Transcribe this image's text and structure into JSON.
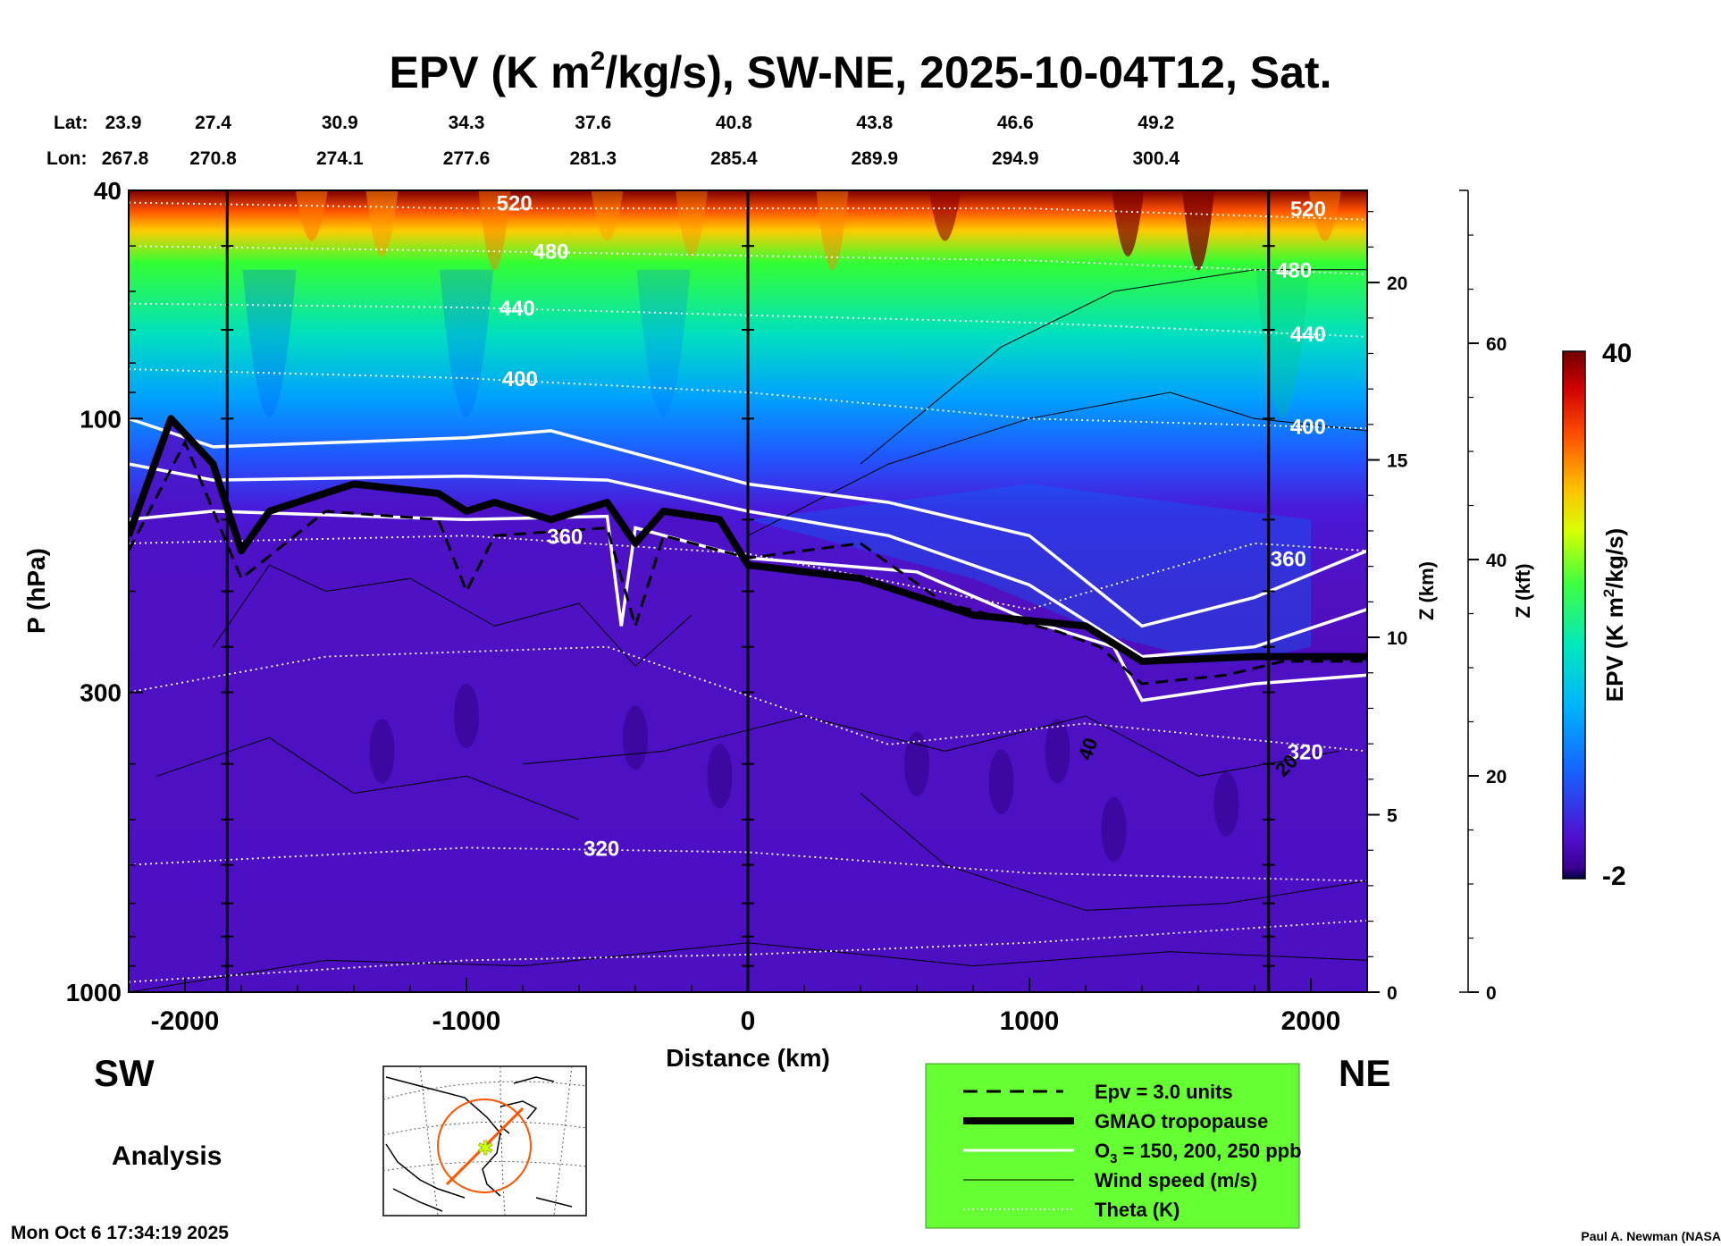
{
  "chart_data": {
    "type": "heatmap",
    "title": "EPV (K m²/kg/s), SW-NE, 2025-10-04T12, Sat.",
    "title_main": "EPV (K m",
    "title_sup": "2",
    "title_rest": "/kg/s), SW-NE, 2025-10-04T12, Sat.",
    "top_axis": {
      "lat_label": "Lat:",
      "lon_label": "Lon:",
      "lat": [
        "23.9",
        "27.4",
        "30.9",
        "34.3",
        "37.6",
        "40.8",
        "43.8",
        "46.6",
        "49.2"
      ],
      "lon": [
        "267.8",
        "270.8",
        "274.1",
        "277.6",
        "281.3",
        "285.4",
        "289.9",
        "294.9",
        "300.4"
      ],
      "distance_at": [
        -2200,
        -1900,
        -1450,
        -1000,
        -550,
        -50,
        450,
        950,
        1450
      ]
    },
    "xlabel": "Distance (km)",
    "xlim": [
      -2200,
      2200
    ],
    "xticks": [
      -2000,
      -1000,
      0,
      1000,
      2000
    ],
    "xtick_labels": [
      "-2000",
      "-1000",
      "0",
      "1000",
      "2000"
    ],
    "ylabel": "P (hPa)",
    "yscale": "log",
    "ylim": [
      1000,
      40
    ],
    "yticks": [
      40,
      100,
      300,
      1000
    ],
    "ytick_labels": [
      "40",
      "100",
      "300",
      "1000"
    ],
    "z_km_label": "Z (km)",
    "z_km_ticks": [
      0,
      5,
      10,
      15,
      20
    ],
    "z_km_tick_labels": [
      "0",
      "5",
      "10",
      "15",
      "20"
    ],
    "z_kft_label": "Z (kft)",
    "z_kft_ticks": [
      0,
      20,
      40,
      60
    ],
    "z_kft_tick_labels": [
      "0",
      "20",
      "40",
      "60"
    ],
    "vertical_lines_km": [
      -1850,
      0,
      1850
    ],
    "left_label": "SW",
    "right_label": "NE",
    "analysis_label": "Analysis",
    "colorbar": {
      "label": "EPV (K m²/kg/s)",
      "label_main": "EPV (K m",
      "label_sup": "2",
      "label_rest": "/kg/s)",
      "min": -2,
      "max": 40,
      "min_label": "-2",
      "max_label": "40"
    },
    "theta_contours": [
      {
        "label": "520",
        "points": [
          [
            -2200,
            42
          ],
          [
            -1000,
            43
          ],
          [
            0,
            43
          ],
          [
            1000,
            43
          ],
          [
            2200,
            45
          ]
        ]
      },
      {
        "label": "480",
        "points": [
          [
            -2200,
            50
          ],
          [
            -1000,
            51
          ],
          [
            0,
            52
          ],
          [
            1000,
            53
          ],
          [
            2200,
            56
          ]
        ]
      },
      {
        "label": "440",
        "points": [
          [
            -2200,
            63
          ],
          [
            -1000,
            64
          ],
          [
            0,
            66
          ],
          [
            1000,
            68
          ],
          [
            2200,
            72
          ]
        ]
      },
      {
        "label": "400",
        "points": [
          [
            -2200,
            82
          ],
          [
            -1000,
            85
          ],
          [
            0,
            90
          ],
          [
            1000,
            100
          ],
          [
            2200,
            104
          ]
        ]
      },
      {
        "label": "360",
        "points": [
          [
            -2200,
            165
          ],
          [
            -1000,
            160
          ],
          [
            0,
            172
          ],
          [
            1000,
            215
          ],
          [
            1800,
            165
          ],
          [
            2200,
            170
          ]
        ]
      },
      {
        "label": "320",
        "points": [
          [
            -2200,
            300
          ],
          [
            -1500,
            260
          ],
          [
            -500,
            250
          ],
          [
            500,
            370
          ],
          [
            1200,
            340
          ],
          [
            2200,
            380
          ]
        ]
      },
      {
        "label": "320",
        "points": [
          [
            -2200,
            600
          ],
          [
            -1000,
            560
          ],
          [
            0,
            570
          ],
          [
            1000,
            620
          ],
          [
            2200,
            640
          ]
        ]
      },
      {
        "label": "",
        "points": [
          [
            -2200,
            960
          ],
          [
            -1000,
            880
          ],
          [
            0,
            860
          ],
          [
            1000,
            820
          ],
          [
            2200,
            750
          ]
        ]
      }
    ],
    "tropopause": [
      [
        -2200,
        160
      ],
      [
        -2050,
        100
      ],
      [
        -1900,
        120
      ],
      [
        -1800,
        170
      ],
      [
        -1700,
        145
      ],
      [
        -1400,
        130
      ],
      [
        -1100,
        135
      ],
      [
        -1000,
        145
      ],
      [
        -900,
        140
      ],
      [
        -700,
        150
      ],
      [
        -500,
        140
      ],
      [
        -400,
        165
      ],
      [
        -300,
        145
      ],
      [
        -100,
        150
      ],
      [
        0,
        180
      ],
      [
        400,
        190
      ],
      [
        800,
        220
      ],
      [
        1200,
        230
      ],
      [
        1400,
        265
      ],
      [
        1800,
        260
      ],
      [
        2200,
        260
      ]
    ],
    "epv3": [
      [
        -2200,
        170
      ],
      [
        -2000,
        110
      ],
      [
        -1800,
        190
      ],
      [
        -1500,
        145
      ],
      [
        -1100,
        150
      ],
      [
        -1000,
        200
      ],
      [
        -900,
        160
      ],
      [
        -500,
        155
      ],
      [
        -400,
        230
      ],
      [
        -300,
        160
      ],
      [
        0,
        175
      ],
      [
        400,
        165
      ],
      [
        700,
        210
      ],
      [
        1100,
        235
      ],
      [
        1250,
        250
      ],
      [
        1400,
        290
      ],
      [
        1700,
        280
      ],
      [
        1900,
        265
      ],
      [
        2200,
        265
      ]
    ],
    "ozone": [
      {
        "label": "150",
        "points": [
          [
            -2200,
            100
          ],
          [
            -1900,
            112
          ],
          [
            -1000,
            108
          ],
          [
            -700,
            105
          ],
          [
            0,
            130
          ],
          [
            500,
            140
          ],
          [
            1000,
            160
          ],
          [
            1400,
            230
          ],
          [
            1800,
            205
          ],
          [
            2200,
            170
          ]
        ]
      },
      {
        "label": "200",
        "points": [
          [
            -2200,
            120
          ],
          [
            -1900,
            128
          ],
          [
            -1000,
            126
          ],
          [
            -500,
            128
          ],
          [
            0,
            145
          ],
          [
            500,
            160
          ],
          [
            1000,
            195
          ],
          [
            1400,
            260
          ],
          [
            1800,
            250
          ],
          [
            2200,
            215
          ]
        ]
      },
      {
        "label": "250",
        "points": [
          [
            -2200,
            150
          ],
          [
            -1900,
            145
          ],
          [
            -1000,
            150
          ],
          [
            -500,
            148
          ],
          [
            -450,
            230
          ],
          [
            -400,
            155
          ],
          [
            0,
            175
          ],
          [
            600,
            185
          ],
          [
            1000,
            225
          ],
          [
            1300,
            250
          ],
          [
            1400,
            310
          ],
          [
            1800,
            290
          ],
          [
            2200,
            280
          ]
        ]
      }
    ],
    "wind_labels": [
      "40",
      "20"
    ],
    "legend": {
      "placement": "bottom-right",
      "background": "#66ff33",
      "items": [
        {
          "label": "Epv = 3.0 units",
          "style": "dashed"
        },
        {
          "label": "GMAO tropopause",
          "style": "thick"
        },
        {
          "label": "O₃ = 150, 200, 250 ppb",
          "label_main": "O",
          "label_sub": "3",
          "label_rest": " = 150, 200, 250 ppb",
          "style": "white"
        },
        {
          "label": "Wind speed (m/s)",
          "style": "thin"
        },
        {
          "label": "Theta (K)",
          "style": "dotted"
        }
      ]
    },
    "colors": {
      "epv_low": "#4b00b5",
      "epv_mid": "#00b4ff",
      "epv_green": "#33ff33",
      "epv_high": "#7a0000",
      "legend_bg": "#66ff33",
      "map_track": "#ff5500",
      "map_star": "#ccff00"
    }
  },
  "footer": {
    "timestamp": "Mon Oct  6 17:34:19 2025",
    "credit": "Paul A. Newman (NASA"
  }
}
